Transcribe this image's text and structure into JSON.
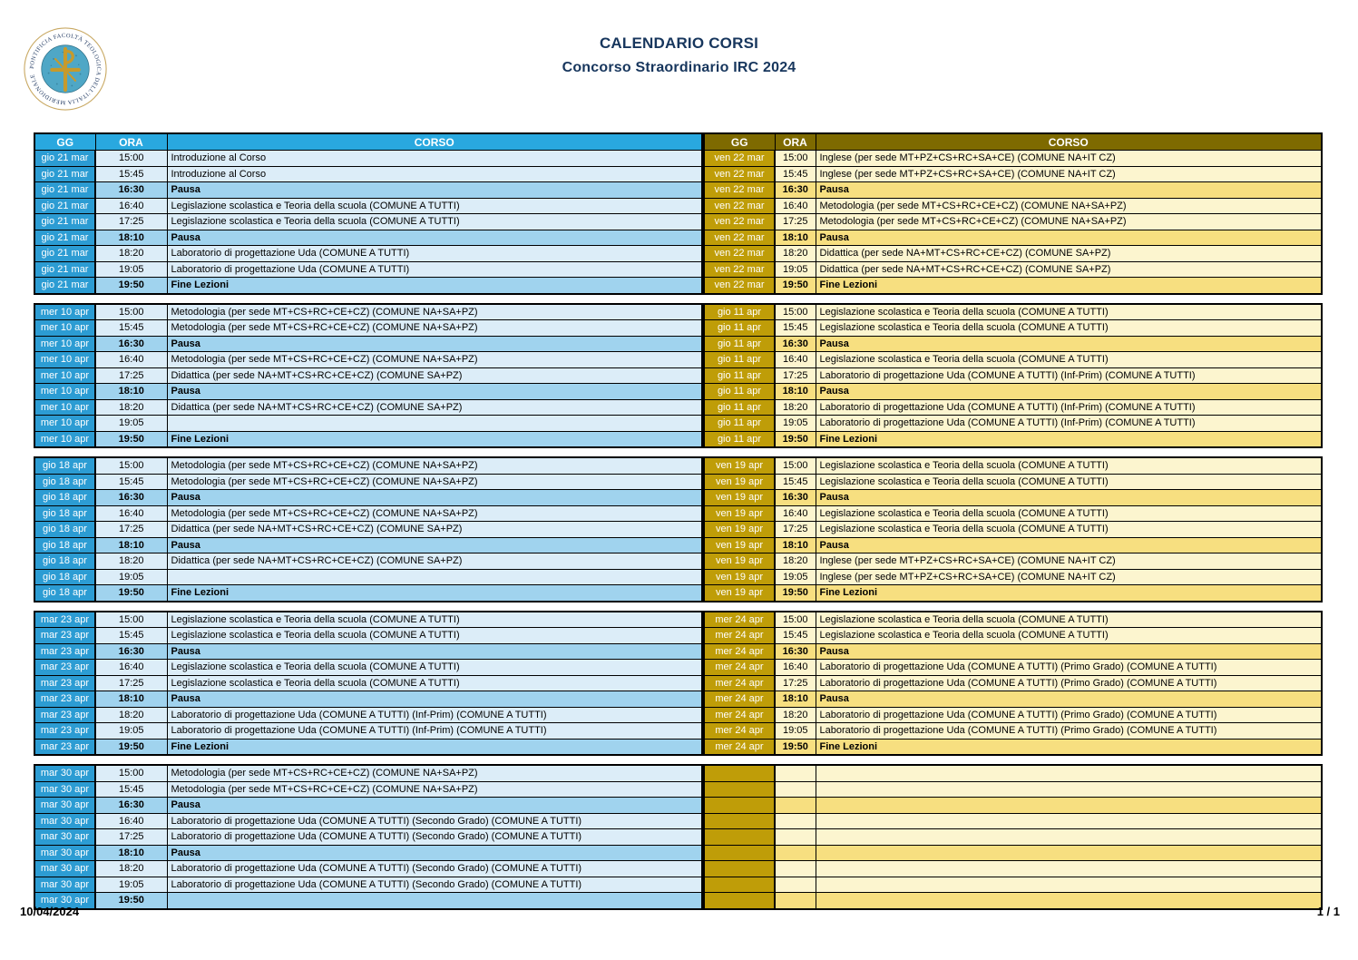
{
  "header": {
    "title_line1": "CALENDARIO CORSI",
    "title_line2": "Concorso Straordinario IRC 2024"
  },
  "logo": {
    "ring_text": "PONTIFICIA FACOLTÀ TEOLOGICA DELL'ITALIA MERIDIONALE"
  },
  "table_headers": {
    "gg": "GG",
    "ora": "ORA",
    "corso": "CORSO"
  },
  "footer": {
    "date": "10/04/2024",
    "page": "1 / 1"
  },
  "colors": {
    "title_navy": "#17365D",
    "left_header": "#29A8DF",
    "left_day": "#2C9CD3",
    "left_row": "#DCEDF8",
    "left_pausa": "#A0D3EE",
    "right_header": "#7E6A00",
    "right_day": "#BF9D08",
    "right_row": "#FCF5CF",
    "right_pausa": "#F7DF80",
    "border": "#000000",
    "seal_teal": "#4FA7C6",
    "seal_gold": "#C79A2C"
  },
  "blocks": [
    {
      "left": {
        "day": "gio 21 mar",
        "rows": [
          {
            "time": "15:00",
            "course": "Introduzione al Corso",
            "type": "n"
          },
          {
            "time": "15:45",
            "course": "Introduzione al Corso",
            "type": "n"
          },
          {
            "time": "16:30",
            "course": "Pausa",
            "type": "h"
          },
          {
            "time": "16:40",
            "course": "Legislazione scolastica e Teoria della scuola (COMUNE A TUTTI)",
            "type": "n"
          },
          {
            "time": "17:25",
            "course": "Legislazione scolastica e Teoria della scuola (COMUNE A TUTTI)",
            "type": "n"
          },
          {
            "time": "18:10",
            "course": "Pausa",
            "type": "h"
          },
          {
            "time": "18:20",
            "course": "Laboratorio di progettazione Uda (COMUNE A TUTTI)",
            "type": "n"
          },
          {
            "time": "19:05",
            "course": "Laboratorio di progettazione Uda (COMUNE A TUTTI)",
            "type": "n"
          },
          {
            "time": "19:50",
            "course": "Fine Lezioni",
            "type": "h"
          }
        ]
      },
      "right": {
        "day": "ven 22 mar",
        "rows": [
          {
            "time": "15:00",
            "course": "Inglese (per sede MT+PZ+CS+RC+SA+CE) (COMUNE NA+IT CZ)",
            "type": "n"
          },
          {
            "time": "15:45",
            "course": "Inglese (per sede MT+PZ+CS+RC+SA+CE) (COMUNE NA+IT CZ)",
            "type": "n"
          },
          {
            "time": "16:30",
            "course": "Pausa",
            "type": "h"
          },
          {
            "time": "16:40",
            "course": "Metodologia (per sede MT+CS+RC+CE+CZ) (COMUNE NA+SA+PZ)",
            "type": "n"
          },
          {
            "time": "17:25",
            "course": "Metodologia (per sede MT+CS+RC+CE+CZ) (COMUNE NA+SA+PZ)",
            "type": "n"
          },
          {
            "time": "18:10",
            "course": "Pausa",
            "type": "h"
          },
          {
            "time": "18:20",
            "course": "Didattica (per sede NA+MT+CS+RC+CE+CZ) (COMUNE SA+PZ)",
            "type": "n"
          },
          {
            "time": "19:05",
            "course": "Didattica (per sede NA+MT+CS+RC+CE+CZ) (COMUNE SA+PZ)",
            "type": "n"
          },
          {
            "time": "19:50",
            "course": "Fine Lezioni",
            "type": "h"
          }
        ]
      }
    },
    {
      "left": {
        "day": "mer 10 apr",
        "rows": [
          {
            "time": "15:00",
            "course": "Metodologia (per sede MT+CS+RC+CE+CZ) (COMUNE NA+SA+PZ)",
            "type": "n"
          },
          {
            "time": "15:45",
            "course": "Metodologia (per sede MT+CS+RC+CE+CZ) (COMUNE NA+SA+PZ)",
            "type": "n"
          },
          {
            "time": "16:30",
            "course": "Pausa",
            "type": "h"
          },
          {
            "time": "16:40",
            "course": "Metodologia (per sede MT+CS+RC+CE+CZ) (COMUNE NA+SA+PZ)",
            "type": "n"
          },
          {
            "time": "17:25",
            "course": "Didattica (per sede NA+MT+CS+RC+CE+CZ) (COMUNE SA+PZ)",
            "type": "n"
          },
          {
            "time": "18:10",
            "course": "Pausa",
            "type": "h"
          },
          {
            "time": "18:20",
            "course": "Didattica (per sede NA+MT+CS+RC+CE+CZ) (COMUNE SA+PZ)",
            "type": "n"
          },
          {
            "time": "19:05",
            "course": "",
            "type": "n"
          },
          {
            "time": "19:50",
            "course": "Fine Lezioni",
            "type": "h"
          }
        ]
      },
      "right": {
        "day": "gio 11 apr",
        "rows": [
          {
            "time": "15:00",
            "course": "Legislazione scolastica e Teoria della scuola (COMUNE A TUTTI)",
            "type": "n"
          },
          {
            "time": "15:45",
            "course": "Legislazione scolastica e Teoria della scuola (COMUNE A TUTTI)",
            "type": "n"
          },
          {
            "time": "16:30",
            "course": "Pausa",
            "type": "h"
          },
          {
            "time": "16:40",
            "course": "Legislazione scolastica e Teoria della scuola (COMUNE A TUTTI)",
            "type": "n"
          },
          {
            "time": "17:25",
            "course": "Laboratorio di progettazione Uda (COMUNE A TUTTI) (Inf-Prim) (COMUNE A TUTTI)",
            "type": "n"
          },
          {
            "time": "18:10",
            "course": "Pausa",
            "type": "h"
          },
          {
            "time": "18:20",
            "course": "Laboratorio di progettazione Uda (COMUNE A TUTTI) (Inf-Prim) (COMUNE A TUTTI)",
            "type": "n"
          },
          {
            "time": "19:05",
            "course": "Laboratorio di progettazione Uda (COMUNE A TUTTI) (Inf-Prim) (COMUNE A TUTTI)",
            "type": "n"
          },
          {
            "time": "19:50",
            "course": "Fine Lezioni",
            "type": "h"
          }
        ]
      }
    },
    {
      "left": {
        "day": "gio 18 apr",
        "rows": [
          {
            "time": "15:00",
            "course": "Metodologia (per sede MT+CS+RC+CE+CZ) (COMUNE NA+SA+PZ)",
            "type": "n"
          },
          {
            "time": "15:45",
            "course": "Metodologia (per sede MT+CS+RC+CE+CZ) (COMUNE NA+SA+PZ)",
            "type": "n"
          },
          {
            "time": "16:30",
            "course": "Pausa",
            "type": "h"
          },
          {
            "time": "16:40",
            "course": "Metodologia (per sede MT+CS+RC+CE+CZ) (COMUNE NA+SA+PZ)",
            "type": "n"
          },
          {
            "time": "17:25",
            "course": "Didattica (per sede NA+MT+CS+RC+CE+CZ) (COMUNE SA+PZ)",
            "type": "n"
          },
          {
            "time": "18:10",
            "course": "Pausa",
            "type": "h"
          },
          {
            "time": "18:20",
            "course": "Didattica (per sede NA+MT+CS+RC+CE+CZ) (COMUNE SA+PZ)",
            "type": "n"
          },
          {
            "time": "19:05",
            "course": "",
            "type": "n"
          },
          {
            "time": "19:50",
            "course": "Fine Lezioni",
            "type": "h"
          }
        ]
      },
      "right": {
        "day": "ven 19 apr",
        "rows": [
          {
            "time": "15:00",
            "course": "Legislazione scolastica e Teoria della scuola (COMUNE A TUTTI)",
            "type": "n"
          },
          {
            "time": "15:45",
            "course": "Legislazione scolastica e Teoria della scuola (COMUNE A TUTTI)",
            "type": "n"
          },
          {
            "time": "16:30",
            "course": "Pausa",
            "type": "h"
          },
          {
            "time": "16:40",
            "course": "Legislazione scolastica e Teoria della scuola (COMUNE A TUTTI)",
            "type": "n"
          },
          {
            "time": "17:25",
            "course": "Legislazione scolastica e Teoria della scuola (COMUNE A TUTTI)",
            "type": "n"
          },
          {
            "time": "18:10",
            "course": "Pausa",
            "type": "h"
          },
          {
            "time": "18:20",
            "course": "Inglese (per sede MT+PZ+CS+RC+SA+CE) (COMUNE NA+IT CZ)",
            "type": "n"
          },
          {
            "time": "19:05",
            "course": "Inglese (per sede MT+PZ+CS+RC+SA+CE) (COMUNE NA+IT CZ)",
            "type": "n"
          },
          {
            "time": "19:50",
            "course": "Fine Lezioni",
            "type": "h"
          }
        ]
      }
    },
    {
      "left": {
        "day": "mar 23 apr",
        "rows": [
          {
            "time": "15:00",
            "course": "Legislazione scolastica e Teoria della scuola (COMUNE A TUTTI)",
            "type": "n"
          },
          {
            "time": "15:45",
            "course": "Legislazione scolastica e Teoria della scuola (COMUNE A TUTTI)",
            "type": "n"
          },
          {
            "time": "16:30",
            "course": "Pausa",
            "type": "h"
          },
          {
            "time": "16:40",
            "course": "Legislazione scolastica e Teoria della scuola (COMUNE A TUTTI)",
            "type": "n"
          },
          {
            "time": "17:25",
            "course": "Legislazione scolastica e Teoria della scuola (COMUNE A TUTTI)",
            "type": "n"
          },
          {
            "time": "18:10",
            "course": "Pausa",
            "type": "h"
          },
          {
            "time": "18:20",
            "course": "Laboratorio di progettazione Uda (COMUNE A TUTTI) (Inf-Prim) (COMUNE A TUTTI)",
            "type": "n"
          },
          {
            "time": "19:05",
            "course": "Laboratorio di progettazione Uda (COMUNE A TUTTI) (Inf-Prim) (COMUNE A TUTTI)",
            "type": "n"
          },
          {
            "time": "19:50",
            "course": "Fine Lezioni",
            "type": "h"
          }
        ]
      },
      "right": {
        "day": "mer 24 apr",
        "rows": [
          {
            "time": "15:00",
            "course": "Legislazione scolastica e Teoria della scuola (COMUNE A TUTTI)",
            "type": "n"
          },
          {
            "time": "15:45",
            "course": "Legislazione scolastica e Teoria della scuola (COMUNE A TUTTI)",
            "type": "n"
          },
          {
            "time": "16:30",
            "course": "Pausa",
            "type": "h"
          },
          {
            "time": "16:40",
            "course": "Laboratorio di progettazione Uda (COMUNE A TUTTI) (Primo Grado) (COMUNE A TUTTI)",
            "type": "n"
          },
          {
            "time": "17:25",
            "course": "Laboratorio di progettazione Uda (COMUNE A TUTTI) (Primo Grado) (COMUNE A TUTTI)",
            "type": "n"
          },
          {
            "time": "18:10",
            "course": "Pausa",
            "type": "h"
          },
          {
            "time": "18:20",
            "course": "Laboratorio di progettazione Uda (COMUNE A TUTTI) (Primo Grado) (COMUNE A TUTTI)",
            "type": "n"
          },
          {
            "time": "19:05",
            "course": "Laboratorio di progettazione Uda (COMUNE A TUTTI) (Primo Grado) (COMUNE A TUTTI)",
            "type": "n"
          },
          {
            "time": "19:50",
            "course": "Fine Lezioni",
            "type": "h"
          }
        ]
      }
    },
    {
      "left": {
        "day": "mar 30 apr",
        "rows": [
          {
            "time": "15:00",
            "course": "Metodologia (per sede MT+CS+RC+CE+CZ) (COMUNE NA+SA+PZ)",
            "type": "n"
          },
          {
            "time": "15:45",
            "course": "Metodologia (per sede MT+CS+RC+CE+CZ) (COMUNE NA+SA+PZ)",
            "type": "n"
          },
          {
            "time": "16:30",
            "course": "Pausa",
            "type": "h"
          },
          {
            "time": "16:40",
            "course": "Laboratorio di progettazione Uda (COMUNE A TUTTI) (Secondo Grado) (COMUNE A TUTTI)",
            "type": "n"
          },
          {
            "time": "17:25",
            "course": "Laboratorio di progettazione Uda (COMUNE A TUTTI) (Secondo Grado) (COMUNE A TUTTI)",
            "type": "n"
          },
          {
            "time": "18:10",
            "course": "Pausa",
            "type": "h"
          },
          {
            "time": "18:20",
            "course": "Laboratorio di progettazione Uda (COMUNE A TUTTI) (Secondo Grado) (COMUNE A TUTTI)",
            "type": "n"
          },
          {
            "time": "19:05",
            "course": "Laboratorio di progettazione Uda (COMUNE A TUTTI) (Secondo Grado) (COMUNE A TUTTI)",
            "type": "n"
          },
          {
            "time": "19:50",
            "course": "",
            "type": "h"
          }
        ]
      },
      "right": {
        "day": "",
        "rows": [
          {
            "time": "",
            "course": "",
            "type": "n"
          },
          {
            "time": "",
            "course": "",
            "type": "n"
          },
          {
            "time": "",
            "course": "",
            "type": "h"
          },
          {
            "time": "",
            "course": "",
            "type": "n"
          },
          {
            "time": "",
            "course": "",
            "type": "n"
          },
          {
            "time": "",
            "course": "",
            "type": "h"
          },
          {
            "time": "",
            "course": "",
            "type": "n"
          },
          {
            "time": "",
            "course": "",
            "type": "n"
          },
          {
            "time": "",
            "course": "",
            "type": "h"
          }
        ]
      }
    }
  ]
}
